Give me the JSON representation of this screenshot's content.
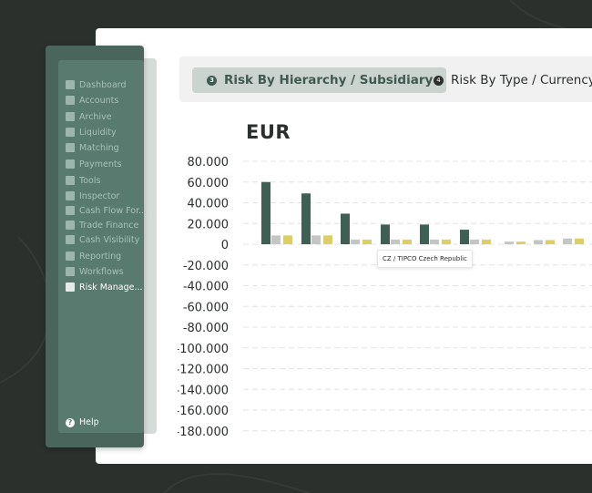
{
  "sidebar": {
    "items": [
      {
        "label": "Dashboard",
        "icon": "dashboard-icon"
      },
      {
        "label": "Accounts",
        "icon": "accounts-icon"
      },
      {
        "label": "Archive",
        "icon": "archive-icon"
      },
      {
        "label": "Liquidity",
        "icon": "liquidity-icon"
      },
      {
        "label": "Matching",
        "icon": "matching-icon"
      },
      {
        "label": "Payments",
        "icon": "payments-icon"
      },
      {
        "label": "Tools",
        "icon": "tools-icon"
      },
      {
        "label": "Inspector",
        "icon": "inspector-icon"
      },
      {
        "label": "Cash Flow For...",
        "icon": "cash-flow-icon"
      },
      {
        "label": "Trade Finance",
        "icon": "trade-finance-icon"
      },
      {
        "label": "Cash Visibility",
        "icon": "cash-visibility-icon"
      },
      {
        "label": "Reporting",
        "icon": "reporting-icon"
      },
      {
        "label": "Workflows",
        "icon": "workflows-icon"
      },
      {
        "label": "Risk Manage...",
        "icon": "risk-management-icon",
        "active": true
      }
    ],
    "help_label": "Help"
  },
  "tabs": [
    {
      "number": "3",
      "label": "Risk By Hierarchy / Subsidiary",
      "active": true
    },
    {
      "number": "4",
      "label": "Risk By Type / Currency"
    }
  ],
  "chart_data": {
    "type": "bar",
    "title": "EUR",
    "ylim": [
      -180000,
      80000
    ],
    "yticks": [
      "80.000",
      "60.000",
      "40.000",
      "20.000",
      "0",
      "-20.000",
      "-40.000",
      "-60.000",
      "-80.000",
      "-100.000",
      "-120.000",
      "-140.000",
      "-160.000",
      "-180.000"
    ],
    "tick_values": [
      80000,
      60000,
      40000,
      20000,
      0,
      -20000,
      -40000,
      -60000,
      -80000,
      -100000,
      -120000,
      -140000,
      -160000,
      -180000
    ],
    "series": [
      {
        "color": "#3f5f55",
        "values": [
          60000,
          49000,
          29500,
          19000,
          19000,
          14000,
          0,
          0,
          0,
          0
        ]
      },
      {
        "color": "#c4c6c5",
        "values": [
          8500,
          8500,
          4500,
          4500,
          4500,
          4500,
          2500,
          4000,
          5500,
          2500
        ]
      },
      {
        "color": "#ddcf62",
        "values": [
          8500,
          8500,
          4500,
          4500,
          4500,
          4500,
          2500,
          4000,
          5500,
          0
        ]
      }
    ],
    "grid": "dashed horizontal",
    "tooltip": "CZ / TIPCO Czech Republic"
  }
}
